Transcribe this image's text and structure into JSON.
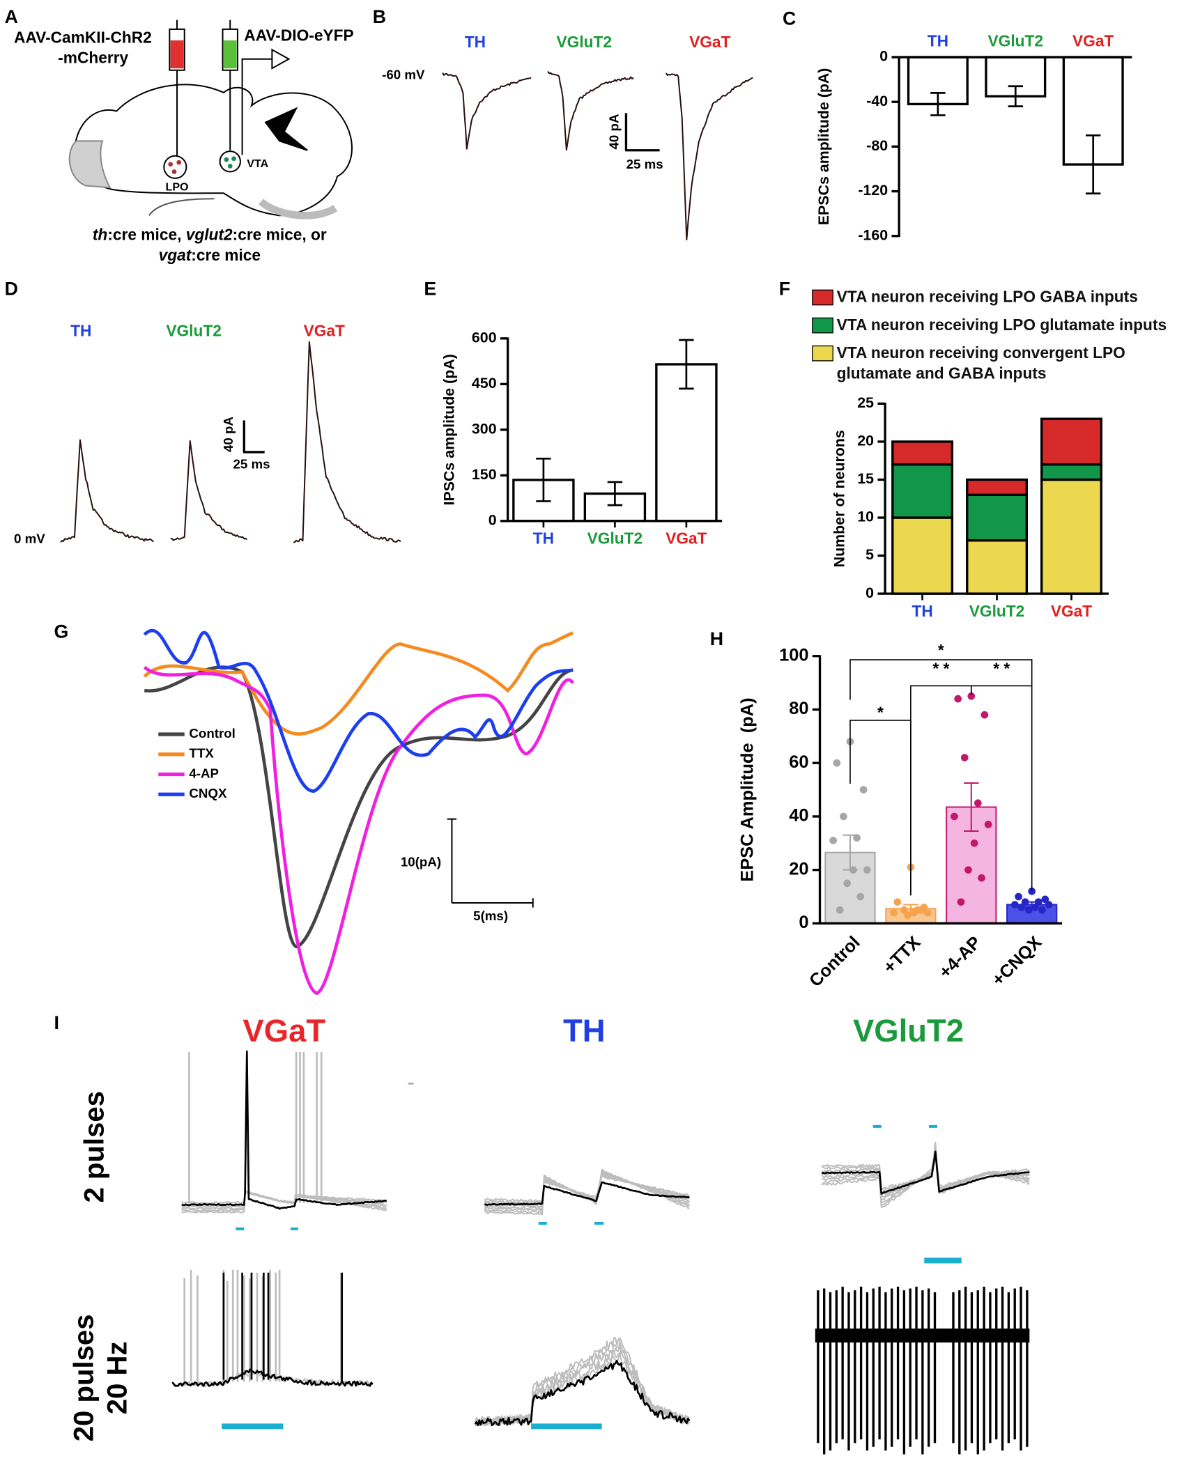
{
  "panel_labels": [
    "A",
    "B",
    "C",
    "D",
    "E",
    "F",
    "G",
    "H",
    "I"
  ],
  "panel_a": {
    "virus_left_1": "AAV-CamKII-ChR2",
    "virus_left_2": "-mCherry",
    "virus_right": "AAV-DIO-eYFP",
    "region_1": "LPO",
    "region_2": "VTA",
    "caption_1": [
      "th",
      ":cre mice, ",
      "vglut2",
      ":cre mice, or"
    ],
    "caption_2": [
      "vgat",
      ":cre mice"
    ]
  },
  "panel_b": {
    "groups": [
      "TH",
      "VGluT2",
      "VGaT"
    ],
    "group_colors": [
      "#1f3fe0",
      "#1a9a3a",
      "#e02020"
    ],
    "holding": "-60 mV",
    "scale_y": "40 pA",
    "scale_x": "25 ms"
  },
  "panel_d": {
    "groups": [
      "TH",
      "VGluT2",
      "VGaT"
    ],
    "group_colors": [
      "#1f3fe0",
      "#1a9a3a",
      "#e02020"
    ],
    "holding": "0 mV",
    "scale_y": "40 pA",
    "scale_x": "25 ms"
  },
  "panel_g": {
    "legend": [
      {
        "name": "Control",
        "color": "#444444"
      },
      {
        "name": "TTX",
        "color": "#f58a1f"
      },
      {
        "name": "4-AP",
        "color": "#f020e0"
      },
      {
        "name": "CNQX",
        "color": "#1a3ef0"
      }
    ],
    "scale_y": "10(pA)",
    "scale_x": "5(ms)"
  },
  "panel_i": {
    "columns": [
      {
        "name": "VGaT",
        "color": "#e8262a"
      },
      {
        "name": "TH",
        "color": "#1f3fe0"
      },
      {
        "name": "VGluT2",
        "color": "#1a9a3a"
      }
    ],
    "row_1": "2 pulses",
    "row_2": [
      "20 pulses",
      "20 Hz"
    ]
  },
  "chart_data": [
    {
      "type": "bar",
      "y_label": "EPSCs amplitude (pA)",
      "categories": [
        "TH",
        "VGluT2",
        "VGaT"
      ],
      "category_colors": [
        "#1f3fe0",
        "#1a9a3a",
        "#e02020"
      ],
      "values": [
        -42,
        -35,
        -96
      ],
      "errors": [
        10,
        9,
        26
      ],
      "color": "#ffffff",
      "ylim": [
        -160,
        0
      ],
      "yticks": [
        0,
        -40,
        -80,
        -120,
        -160
      ]
    },
    {
      "type": "bar",
      "y_label": "IPSCs amplitude (pA)",
      "categories": [
        "TH",
        "VGluT2",
        "VGaT"
      ],
      "category_colors": [
        "#1f3fe0",
        "#1a9a3a",
        "#e02020"
      ],
      "values": [
        135,
        90,
        515
      ],
      "errors": [
        70,
        38,
        80
      ],
      "color": "#ffffff",
      "ylim": [
        0,
        600
      ],
      "yticks": [
        0,
        150,
        300,
        450,
        600
      ]
    },
    {
      "type": "stacked_bar",
      "y_label": "Number of neurons",
      "categories": [
        "TH",
        "VGluT2",
        "VGaT"
      ],
      "category_colors": [
        "#1f3fe0",
        "#1a9a3a",
        "#e02020"
      ],
      "series": [
        {
          "name": "VTA neuron receiving LPO GABA inputs",
          "color": "#d62a2a",
          "values": [
            3,
            2,
            6
          ]
        },
        {
          "name": "VTA neuron receiving LPO glutamate inputs",
          "color": "#12964a",
          "values": [
            7,
            6,
            2
          ]
        },
        {
          "name": "VTA neuron receiving convergent LPO glutamate and GABA inputs",
          "color": "#ecd84e",
          "values": [
            10,
            7,
            15
          ]
        }
      ],
      "legend": "top",
      "ylim": [
        0,
        25
      ],
      "yticks": [
        0,
        5,
        10,
        15,
        20,
        25
      ]
    },
    {
      "type": "bar_points",
      "y_label": "EPSC Amplitude  (pA)",
      "categories": [
        "Control",
        "+TTX",
        "+4-AP",
        "+CNQX"
      ],
      "values": [
        26.5,
        5.5,
        43.5,
        7
      ],
      "errors": [
        6.5,
        1.5,
        9,
        1
      ],
      "colors": [
        "#d9d9d9",
        "#f9c690",
        "#f5b5e2",
        "#4b50e6"
      ],
      "point_colors": [
        "#a6a6a6",
        "#f7a24d",
        "#c2186b",
        "#2626c8"
      ],
      "points": [
        [
          68,
          60,
          50,
          40,
          32,
          31,
          20,
          20,
          15,
          10,
          5
        ],
        [
          21,
          8,
          6,
          5,
          5,
          4,
          4,
          4,
          3,
          5
        ],
        [
          85,
          84,
          78,
          62,
          45,
          40,
          37,
          30,
          20,
          17,
          8
        ],
        [
          12,
          10,
          9,
          8,
          8,
          7,
          7,
          6,
          5,
          5,
          6
        ]
      ],
      "significance": [
        "*",
        "* *",
        "* *",
        "*"
      ],
      "ylim": [
        0,
        100
      ],
      "yticks": [
        0,
        20,
        40,
        60,
        80,
        100
      ]
    }
  ]
}
